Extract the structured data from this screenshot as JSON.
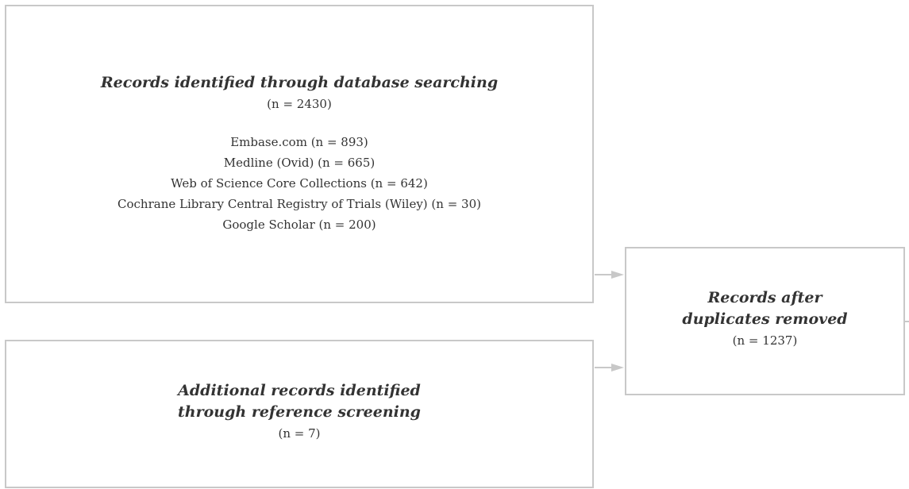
{
  "boxes": {
    "database_search": {
      "title": "Records identified through database searching",
      "count": "(n =  2430)",
      "sources": [
        "Embase.com (n = 893)",
        "Medline (Ovid) (n = 665)",
        "Web of Science Core Collections (n = 642)",
        "Cochrane Library Central Registry of Trials (Wiley) (n = 30)",
        "Google Scholar (n = 200)"
      ]
    },
    "additional_records": {
      "title_line1": "Additional records identified",
      "title_line2": "through reference screening",
      "count": "(n =  7)"
    },
    "after_duplicates": {
      "title_line1": "Records after",
      "title_line2": "duplicates removed",
      "count": "(n =  1237)"
    }
  },
  "colors": {
    "border": "#c8c8c8",
    "arrow": "#c8c8c8",
    "text": "#333333"
  }
}
